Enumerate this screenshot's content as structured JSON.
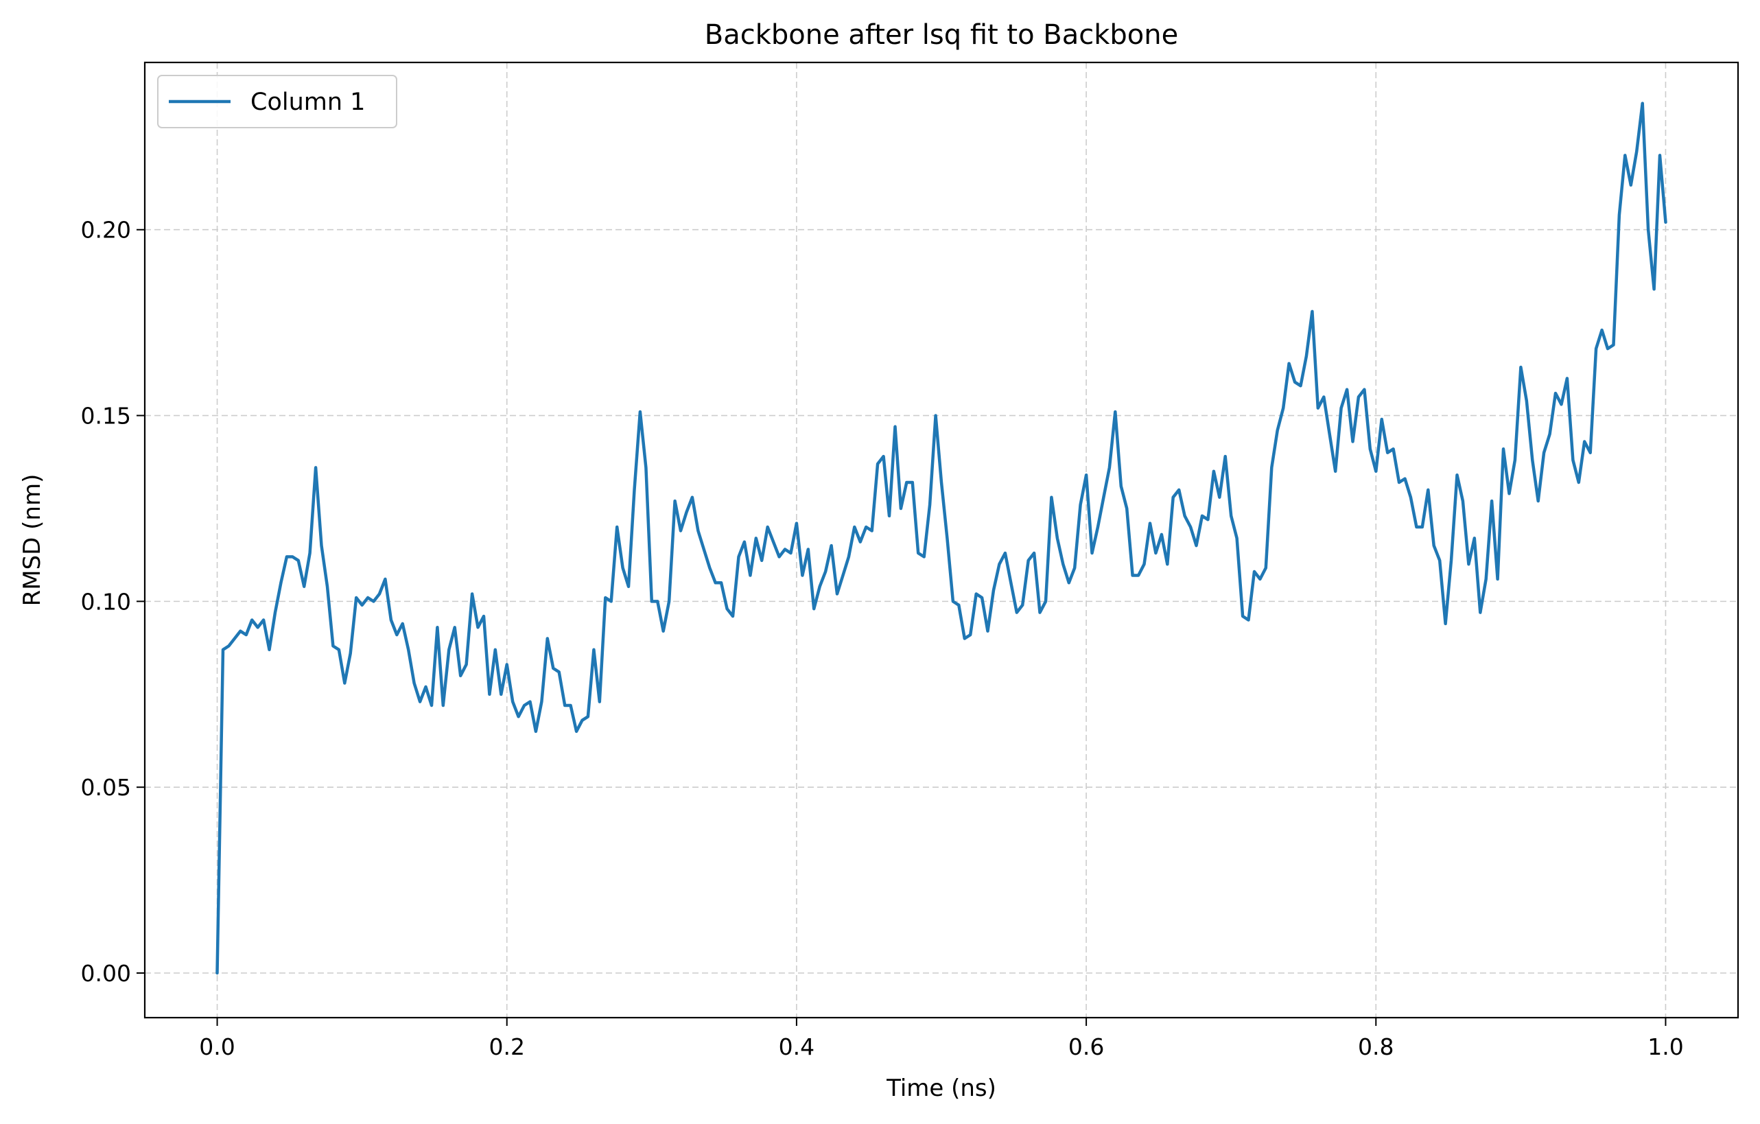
{
  "chart_data": {
    "type": "line",
    "title": "Backbone after lsq fit to Backbone",
    "xlabel": "Time (ns)",
    "ylabel": "RMSD (nm)",
    "xlim": [
      -0.05,
      1.05
    ],
    "ylim": [
      -0.012,
      0.245
    ],
    "xticks": [
      0.0,
      0.2,
      0.4,
      0.6,
      0.8,
      1.0
    ],
    "xtick_labels": [
      "0.0",
      "0.2",
      "0.4",
      "0.6",
      "0.8",
      "1.0"
    ],
    "yticks": [
      0.0,
      0.05,
      0.1,
      0.15,
      0.2
    ],
    "ytick_labels": [
      "0.00",
      "0.05",
      "0.10",
      "0.15",
      "0.20"
    ],
    "grid": true,
    "legend_position": "top-left",
    "series": [
      {
        "name": "Column 1",
        "color": "#1f77b4",
        "x": [
          0.0,
          0.004,
          0.008,
          0.012,
          0.016,
          0.02,
          0.024,
          0.028,
          0.032,
          0.036,
          0.04,
          0.044,
          0.048,
          0.052,
          0.056,
          0.06,
          0.064,
          0.068,
          0.072,
          0.076,
          0.08,
          0.084,
          0.088,
          0.092,
          0.096,
          0.1,
          0.104,
          0.108,
          0.112,
          0.116,
          0.12,
          0.124,
          0.128,
          0.132,
          0.136,
          0.14,
          0.144,
          0.148,
          0.152,
          0.156,
          0.16,
          0.164,
          0.168,
          0.172,
          0.176,
          0.18,
          0.184,
          0.188,
          0.192,
          0.196,
          0.2,
          0.204,
          0.208,
          0.212,
          0.216,
          0.22,
          0.224,
          0.228,
          0.232,
          0.236,
          0.24,
          0.244,
          0.248,
          0.252,
          0.256,
          0.26,
          0.264,
          0.268,
          0.272,
          0.276,
          0.28,
          0.284,
          0.288,
          0.292,
          0.296,
          0.3,
          0.304,
          0.308,
          0.312,
          0.316,
          0.32,
          0.324,
          0.328,
          0.332,
          0.336,
          0.34,
          0.344,
          0.348,
          0.352,
          0.356,
          0.36,
          0.364,
          0.368,
          0.372,
          0.376,
          0.38,
          0.384,
          0.388,
          0.392,
          0.396,
          0.4,
          0.404,
          0.408,
          0.412,
          0.416,
          0.42,
          0.424,
          0.428,
          0.432,
          0.436,
          0.44,
          0.444,
          0.448,
          0.452,
          0.456,
          0.46,
          0.464,
          0.468,
          0.472,
          0.476,
          0.48,
          0.484,
          0.488,
          0.492,
          0.496,
          0.5,
          0.504,
          0.508,
          0.512,
          0.516,
          0.52,
          0.524,
          0.528,
          0.532,
          0.536,
          0.54,
          0.544,
          0.548,
          0.552,
          0.556,
          0.56,
          0.564,
          0.568,
          0.572,
          0.576,
          0.58,
          0.584,
          0.588,
          0.592,
          0.596,
          0.6,
          0.604,
          0.608,
          0.612,
          0.616,
          0.62,
          0.624,
          0.628,
          0.632,
          0.636,
          0.64,
          0.644,
          0.648,
          0.652,
          0.656,
          0.66,
          0.664,
          0.668,
          0.672,
          0.676,
          0.68,
          0.684,
          0.688,
          0.692,
          0.696,
          0.7,
          0.704,
          0.708,
          0.712,
          0.716,
          0.72,
          0.724,
          0.728,
          0.732,
          0.736,
          0.74,
          0.744,
          0.748,
          0.752,
          0.756,
          0.76,
          0.764,
          0.768,
          0.772,
          0.776,
          0.78,
          0.784,
          0.788,
          0.792,
          0.796,
          0.8,
          0.804,
          0.808,
          0.812,
          0.816,
          0.82,
          0.824,
          0.828,
          0.832,
          0.836,
          0.84,
          0.844,
          0.848,
          0.852,
          0.856,
          0.86,
          0.864,
          0.868,
          0.872,
          0.876,
          0.88,
          0.884,
          0.888,
          0.892,
          0.896,
          0.9,
          0.904,
          0.908,
          0.912,
          0.916,
          0.92,
          0.924,
          0.928,
          0.932,
          0.936,
          0.94,
          0.944,
          0.948,
          0.952,
          0.956,
          0.96,
          0.964,
          0.968,
          0.972,
          0.976,
          0.98,
          0.984,
          0.988,
          0.992,
          0.996,
          1.0
        ],
        "y": [
          0.0,
          0.087,
          0.088,
          0.09,
          0.092,
          0.091,
          0.095,
          0.093,
          0.095,
          0.087,
          0.097,
          0.105,
          0.112,
          0.112,
          0.111,
          0.104,
          0.113,
          0.136,
          0.115,
          0.104,
          0.088,
          0.087,
          0.078,
          0.086,
          0.101,
          0.099,
          0.101,
          0.1,
          0.102,
          0.106,
          0.095,
          0.091,
          0.094,
          0.087,
          0.078,
          0.073,
          0.077,
          0.072,
          0.093,
          0.072,
          0.087,
          0.093,
          0.08,
          0.083,
          0.102,
          0.093,
          0.096,
          0.075,
          0.087,
          0.075,
          0.083,
          0.073,
          0.069,
          0.072,
          0.073,
          0.065,
          0.073,
          0.09,
          0.082,
          0.081,
          0.072,
          0.072,
          0.065,
          0.068,
          0.069,
          0.087,
          0.073,
          0.101,
          0.1,
          0.12,
          0.109,
          0.104,
          0.13,
          0.151,
          0.136,
          0.1,
          0.1,
          0.092,
          0.1,
          0.127,
          0.119,
          0.124,
          0.128,
          0.119,
          0.114,
          0.109,
          0.105,
          0.105,
          0.098,
          0.096,
          0.112,
          0.116,
          0.107,
          0.117,
          0.111,
          0.12,
          0.116,
          0.112,
          0.114,
          0.113,
          0.121,
          0.107,
          0.114,
          0.098,
          0.104,
          0.108,
          0.115,
          0.102,
          0.107,
          0.112,
          0.12,
          0.116,
          0.12,
          0.119,
          0.137,
          0.139,
          0.123,
          0.147,
          0.125,
          0.132,
          0.132,
          0.113,
          0.112,
          0.126,
          0.15,
          0.132,
          0.117,
          0.1,
          0.099,
          0.09,
          0.091,
          0.102,
          0.101,
          0.092,
          0.103,
          0.11,
          0.113,
          0.105,
          0.097,
          0.099,
          0.111,
          0.113,
          0.097,
          0.1,
          0.128,
          0.117,
          0.11,
          0.105,
          0.109,
          0.126,
          0.134,
          0.113,
          0.12,
          0.128,
          0.136,
          0.151,
          0.131,
          0.125,
          0.107,
          0.107,
          0.11,
          0.121,
          0.113,
          0.118,
          0.11,
          0.128,
          0.13,
          0.123,
          0.12,
          0.115,
          0.123,
          0.122,
          0.135,
          0.128,
          0.139,
          0.123,
          0.117,
          0.096,
          0.095,
          0.108,
          0.106,
          0.109,
          0.136,
          0.146,
          0.152,
          0.164,
          0.159,
          0.158,
          0.166,
          0.178,
          0.152,
          0.155,
          0.145,
          0.135,
          0.152,
          0.157,
          0.143,
          0.155,
          0.157,
          0.141,
          0.135,
          0.149,
          0.14,
          0.141,
          0.132,
          0.133,
          0.128,
          0.12,
          0.12,
          0.13,
          0.115,
          0.111,
          0.094,
          0.111,
          0.134,
          0.127,
          0.11,
          0.117,
          0.097,
          0.106,
          0.127,
          0.106,
          0.141,
          0.129,
          0.138,
          0.163,
          0.154,
          0.138,
          0.127,
          0.14,
          0.145,
          0.156,
          0.153,
          0.16,
          0.138,
          0.132,
          0.143,
          0.14,
          0.168,
          0.173,
          0.168,
          0.169,
          0.204,
          0.22,
          0.212,
          0.221,
          0.234,
          0.2,
          0.184,
          0.22,
          0.202
        ]
      }
    ]
  }
}
